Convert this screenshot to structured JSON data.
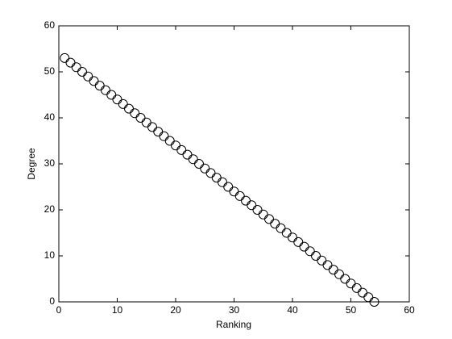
{
  "chart_data": {
    "type": "scatter",
    "x_label": "Ranking",
    "y_label": "Degree",
    "x": [
      1,
      2,
      3,
      4,
      5,
      6,
      7,
      8,
      9,
      10,
      11,
      12,
      13,
      14,
      15,
      16,
      17,
      18,
      19,
      20,
      21,
      22,
      23,
      24,
      25,
      26,
      27,
      28,
      29,
      30,
      31,
      32,
      33,
      34,
      35,
      36,
      37,
      38,
      39,
      40,
      41,
      42,
      43,
      44,
      45,
      46,
      47,
      48,
      49,
      50,
      51,
      52,
      53,
      54
    ],
    "values": [
      53,
      52,
      51,
      50,
      49,
      48,
      47,
      46,
      45,
      44,
      43,
      42,
      41,
      40,
      39,
      38,
      37,
      36,
      35,
      34,
      33,
      32,
      31,
      30,
      29,
      28,
      27,
      26,
      25,
      24,
      23,
      22,
      21,
      20,
      19,
      18,
      17,
      16,
      15,
      14,
      13,
      12,
      11,
      10,
      9,
      8,
      7,
      6,
      5,
      4,
      3,
      2,
      1,
      0
    ],
    "color": "#000000",
    "xlim": [
      0,
      60
    ],
    "xticks": [
      0,
      10,
      20,
      30,
      40,
      50,
      60
    ],
    "ylim": [
      0,
      60
    ],
    "yticks": [
      0,
      10,
      20,
      30,
      40,
      50,
      60
    ]
  }
}
